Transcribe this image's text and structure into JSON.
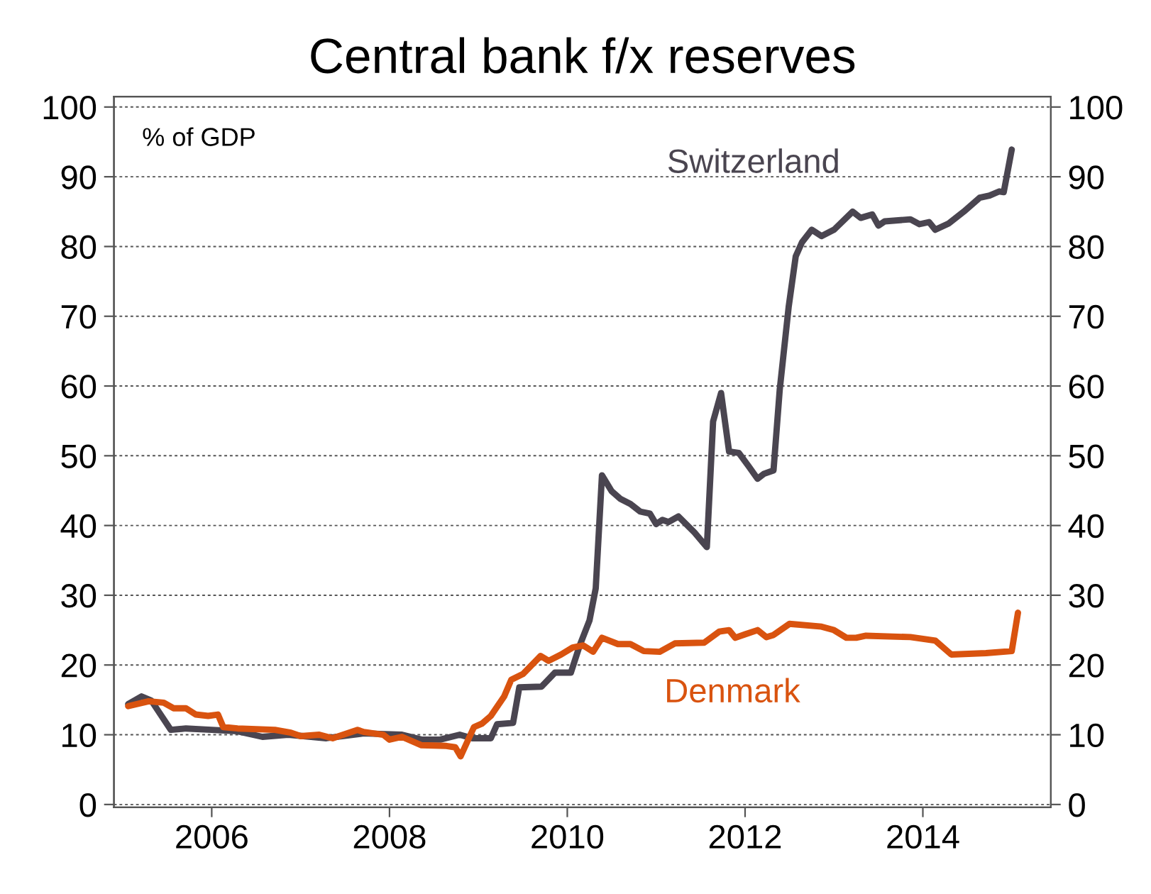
{
  "chart_data": {
    "type": "line",
    "title": "Central bank f/x reserves",
    "annotations": [
      "% of GDP"
    ],
    "xlim": [
      2004.9,
      2015.44
    ],
    "xticks": [
      2006,
      2008,
      2010,
      2012,
      2014
    ],
    "ylim": [
      -0.4,
      101.5
    ],
    "yticks": [
      0,
      10,
      20,
      30,
      40,
      50,
      60,
      70,
      80,
      90,
      100
    ],
    "y2lim": [
      -0.4,
      101.5
    ],
    "y2ticks": [
      0,
      10,
      20,
      30,
      40,
      50,
      60,
      70,
      80,
      90,
      100
    ],
    "grid": "y",
    "legend": false,
    "marker": "none",
    "line_style": "solid",
    "series": [
      {
        "name": "Switzerland",
        "color": "#4a4550",
        "x": [
          2005.06,
          2005.21,
          2005.32,
          2005.54,
          2005.71,
          2006.0,
          2006.29,
          2006.57,
          2006.86,
          2007.29,
          2007.71,
          2008.14,
          2008.36,
          2008.57,
          2008.79,
          2008.93,
          2009.14,
          2009.21,
          2009.39,
          2009.46,
          2009.71,
          2009.86,
          2010.04,
          2010.14,
          2010.25,
          2010.32,
          2010.39,
          2010.5,
          2010.6,
          2010.71,
          2010.82,
          2010.93,
          2011.0,
          2011.07,
          2011.14,
          2011.25,
          2011.43,
          2011.57,
          2011.64,
          2011.73,
          2011.82,
          2011.93,
          2012.04,
          2012.14,
          2012.21,
          2012.32,
          2012.39,
          2012.49,
          2012.57,
          2012.64,
          2012.75,
          2012.86,
          2013.0,
          2013.21,
          2013.3,
          2013.43,
          2013.5,
          2013.57,
          2013.86,
          2013.96,
          2014.07,
          2014.14,
          2014.29,
          2014.46,
          2014.64,
          2014.75,
          2014.86,
          2014.91,
          2015.0
        ],
        "values": [
          14.4,
          15.5,
          14.9,
          10.7,
          10.9,
          10.7,
          10.5,
          9.7,
          10.0,
          9.5,
          10.2,
          10.0,
          9.3,
          9.3,
          10.0,
          9.5,
          9.5,
          11.5,
          11.7,
          16.8,
          16.9,
          18.9,
          18.9,
          22.8,
          26.4,
          31.0,
          47.2,
          44.9,
          43.8,
          43.1,
          42.0,
          41.7,
          40.2,
          40.8,
          40.5,
          41.3,
          39.0,
          36.9,
          54.9,
          59.0,
          50.6,
          50.4,
          48.5,
          46.7,
          47.4,
          47.9,
          59.5,
          71.3,
          78.6,
          80.6,
          82.4,
          81.5,
          82.4,
          85.0,
          84.1,
          84.6,
          83.0,
          83.6,
          83.9,
          83.2,
          83.5,
          82.4,
          83.3,
          85.0,
          87.0,
          87.3,
          87.9,
          87.8,
          93.9
        ]
      },
      {
        "name": "Denmark",
        "color": "#d9530f",
        "x": [
          2005.06,
          2005.29,
          2005.46,
          2005.57,
          2005.71,
          2005.82,
          2005.96,
          2006.07,
          2006.13,
          2006.29,
          2006.71,
          2006.89,
          2007.0,
          2007.21,
          2007.36,
          2007.64,
          2007.71,
          2007.93,
          2008.0,
          2008.14,
          2008.36,
          2008.64,
          2008.74,
          2008.8,
          2008.95,
          2009.04,
          2009.14,
          2009.29,
          2009.37,
          2009.5,
          2009.7,
          2009.79,
          2009.93,
          2010.06,
          2010.18,
          2010.29,
          2010.39,
          2010.57,
          2010.71,
          2010.86,
          2011.04,
          2011.21,
          2011.54,
          2011.71,
          2011.82,
          2011.89,
          2012.0,
          2012.14,
          2012.24,
          2012.32,
          2012.5,
          2012.86,
          2013.0,
          2013.14,
          2013.25,
          2013.36,
          2013.86,
          2014.14,
          2014.32,
          2014.71,
          2015.0,
          2015.07
        ],
        "values": [
          14.1,
          14.8,
          14.6,
          13.8,
          13.8,
          12.9,
          12.7,
          12.9,
          11.1,
          10.9,
          10.7,
          10.3,
          9.8,
          10.0,
          9.5,
          10.7,
          10.4,
          10.0,
          9.3,
          9.7,
          8.5,
          8.4,
          8.2,
          6.9,
          11.1,
          11.6,
          12.7,
          15.5,
          17.9,
          18.7,
          21.3,
          20.6,
          21.5,
          22.5,
          22.8,
          21.9,
          23.9,
          23.0,
          23.0,
          22.0,
          21.9,
          23.1,
          23.2,
          24.8,
          25.0,
          23.9,
          24.4,
          25.0,
          24.0,
          24.3,
          25.9,
          25.5,
          25.0,
          23.9,
          23.9,
          24.2,
          24.0,
          23.5,
          21.5,
          21.7,
          22.0,
          27.5
        ]
      }
    ]
  }
}
